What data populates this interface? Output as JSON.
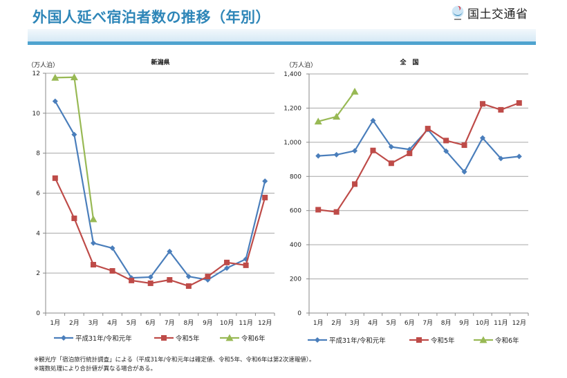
{
  "header": {
    "title": "外国人延べ宿泊者数の推移（年別）",
    "logo_text": "国土交通省",
    "logo_icon": "mlit-logo-icon"
  },
  "colors": {
    "title": "#2e86b8",
    "band": "#4fa3cf",
    "series_h31": "#4a7ebb",
    "series_r5": "#be4b48",
    "series_r6": "#98b954",
    "grid": "#a6a6a6"
  },
  "chart_data": [
    {
      "type": "line",
      "title": "新潟県",
      "ylabel": "（万人泊）",
      "xlabel": "",
      "ylim": [
        0,
        12
      ],
      "yticks": [
        0,
        2,
        4,
        6,
        8,
        10,
        12
      ],
      "ytick_labels": [
        "0",
        "2",
        "4",
        "6",
        "8",
        "10",
        "12"
      ],
      "grid": true,
      "legend": "bottom",
      "categories": [
        "1月",
        "2月",
        "3月",
        "4月",
        "5月",
        "6月",
        "7月",
        "8月",
        "9月",
        "10月",
        "11月",
        "12月"
      ],
      "series": [
        {
          "name": "平成31年/令和元年",
          "marker": "diamond",
          "values": [
            10.6,
            8.93,
            3.5,
            3.25,
            1.76,
            1.8,
            3.08,
            1.83,
            1.66,
            2.25,
            2.7,
            6.6
          ]
        },
        {
          "name": "令和5年",
          "marker": "square",
          "values": [
            6.75,
            4.74,
            2.42,
            2.11,
            1.63,
            1.49,
            1.66,
            1.35,
            1.83,
            2.53,
            2.39,
            5.78
          ]
        },
        {
          "name": "令和6年",
          "marker": "triangle",
          "values": [
            11.78,
            11.8,
            4.7
          ]
        }
      ]
    },
    {
      "type": "line",
      "title": "全　国",
      "ylabel": "（万人泊）",
      "xlabel": "",
      "ylim": [
        0,
        1400
      ],
      "yticks": [
        0,
        200,
        400,
        600,
        800,
        1000,
        1200,
        1400
      ],
      "ytick_labels": [
        "0",
        "200",
        "400",
        "600",
        "800",
        "1,000",
        "1,200",
        "1,400"
      ],
      "grid": true,
      "legend": "bottom",
      "categories": [
        "1月",
        "2月",
        "3月",
        "4月",
        "5月",
        "6月",
        "7月",
        "8月",
        "9月",
        "10月",
        "11月",
        "12月"
      ],
      "series": [
        {
          "name": "平成31年/令和元年",
          "marker": "diamond",
          "values": [
            920,
            927,
            950,
            1127,
            973,
            958,
            1075,
            948,
            827,
            1025,
            905,
            917
          ]
        },
        {
          "name": "令和5年",
          "marker": "square",
          "values": [
            605,
            592,
            755,
            952,
            877,
            935,
            1080,
            1010,
            983,
            1225,
            1190,
            1230
          ]
        },
        {
          "name": "令和6年",
          "marker": "triangle",
          "values": [
            1122,
            1150,
            1297
          ]
        }
      ]
    }
  ],
  "footnotes": [
    "※観光庁「宿泊旅行統計調査」による（平成31年/令和元年は確定値、令和5年、令和6年は第2次速報値）。",
    "※端数処理により合計値が異なる場合がある。"
  ]
}
